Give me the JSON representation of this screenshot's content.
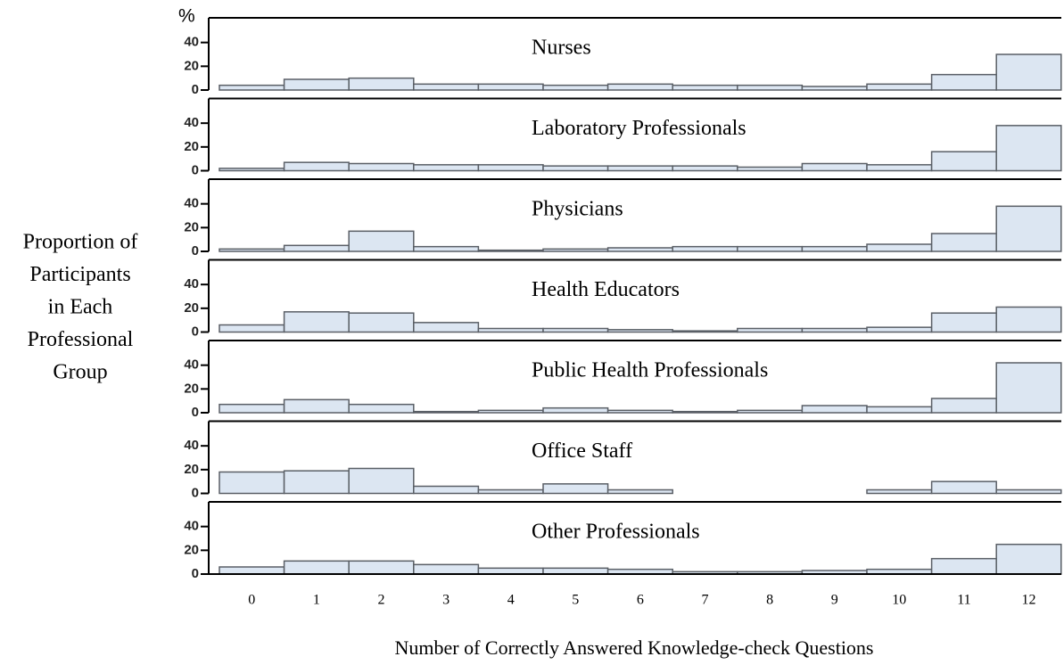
{
  "unit": "%",
  "xlabel": "Number of Correctly Answered Knowledge-check Questions",
  "ylabel": [
    "Proportion of",
    "Participants",
    "in Each",
    "Professional",
    "Group"
  ],
  "chart_data": [
    {
      "type": "bar",
      "title": "Nurses",
      "categories": [
        0,
        1,
        2,
        3,
        4,
        5,
        6,
        7,
        8,
        9,
        10,
        11,
        12
      ],
      "values": [
        4,
        9,
        10,
        5,
        5,
        4,
        5,
        4,
        4,
        3,
        5,
        13,
        30
      ],
      "color": "#dce6f2",
      "ylim": [
        0,
        60
      ],
      "yticks": [
        0,
        20,
        40
      ]
    },
    {
      "type": "bar",
      "title": "Laboratory Professionals",
      "categories": [
        0,
        1,
        2,
        3,
        4,
        5,
        6,
        7,
        8,
        9,
        10,
        11,
        12
      ],
      "values": [
        2,
        7,
        6,
        5,
        5,
        4,
        4,
        4,
        3,
        6,
        5,
        16,
        38
      ],
      "color": "#dce6f2",
      "ylim": [
        0,
        60
      ],
      "yticks": [
        0,
        20,
        40
      ]
    },
    {
      "type": "bar",
      "title": "Physicians",
      "categories": [
        0,
        1,
        2,
        3,
        4,
        5,
        6,
        7,
        8,
        9,
        10,
        11,
        12
      ],
      "values": [
        2,
        5,
        17,
        4,
        1,
        2,
        3,
        4,
        4,
        4,
        6,
        15,
        38
      ],
      "color": "#dce6f2",
      "ylim": [
        0,
        60
      ],
      "yticks": [
        0,
        20,
        40
      ]
    },
    {
      "type": "bar",
      "title": "Health Educators",
      "categories": [
        0,
        1,
        2,
        3,
        4,
        5,
        6,
        7,
        8,
        9,
        10,
        11,
        12
      ],
      "values": [
        6,
        17,
        16,
        8,
        3,
        3,
        2,
        1,
        3,
        3,
        4,
        16,
        21
      ],
      "color": "#dce6f2",
      "ylim": [
        0,
        60
      ],
      "yticks": [
        0,
        20,
        40
      ]
    },
    {
      "type": "bar",
      "title": "Public Health Professionals",
      "categories": [
        0,
        1,
        2,
        3,
        4,
        5,
        6,
        7,
        8,
        9,
        10,
        11,
        12
      ],
      "values": [
        7,
        11,
        7,
        1,
        2,
        4,
        2,
        1,
        2,
        6,
        5,
        12,
        42
      ],
      "color": "#dce6f2",
      "ylim": [
        0,
        60
      ],
      "yticks": [
        0,
        20,
        40
      ]
    },
    {
      "type": "bar",
      "title": "Office Staff",
      "categories": [
        0,
        1,
        2,
        3,
        4,
        5,
        6,
        7,
        8,
        9,
        10,
        11,
        12
      ],
      "values": [
        18,
        19,
        21,
        6,
        3,
        8,
        3,
        0,
        0,
        0,
        3,
        10,
        3
      ],
      "color": "#dce6f2",
      "ylim": [
        0,
        60
      ],
      "yticks": [
        0,
        20,
        40
      ]
    },
    {
      "type": "bar",
      "title": "Other Professionals",
      "categories": [
        0,
        1,
        2,
        3,
        4,
        5,
        6,
        7,
        8,
        9,
        10,
        11,
        12
      ],
      "values": [
        6,
        11,
        11,
        8,
        5,
        5,
        4,
        2,
        2,
        3,
        4,
        13,
        25
      ],
      "color": "#dce6f2",
      "ylim": [
        0,
        60
      ],
      "yticks": [
        0,
        20,
        40
      ]
    }
  ]
}
